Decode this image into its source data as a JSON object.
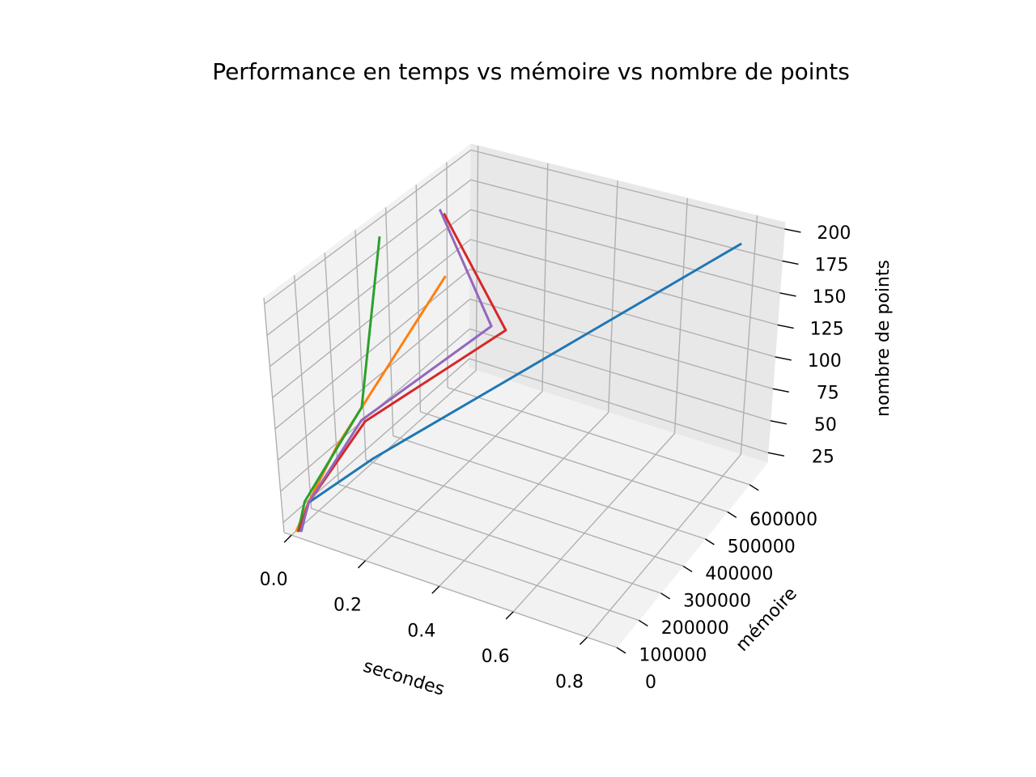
{
  "chart_data": {
    "type": "line3d",
    "title": "Performance en temps vs mémoire vs nombre de points",
    "xlabel": "secondes",
    "ylabel": "mémoire",
    "zlabel": "nombre de points",
    "xlim": [
      -0.02,
      0.88
    ],
    "ylim": [
      0,
      680000
    ],
    "zlim": [
      17,
      205
    ],
    "x_ticks": [
      "0.0",
      "0.2",
      "0.4",
      "0.6",
      "0.8"
    ],
    "y_ticks": [
      "0",
      "100000",
      "200000",
      "300000",
      "400000",
      "500000",
      "600000"
    ],
    "z_ticks": [
      "25",
      "50",
      "75",
      "100",
      "125",
      "150",
      "175",
      "200"
    ],
    "grid": true,
    "pane_color": "#f2f2f2",
    "series": [
      {
        "color": "#1f77b4",
        "points": [
          [
            0.02,
            10000,
            20
          ],
          [
            0.03,
            30000,
            40
          ],
          [
            0.18,
            80000,
            80
          ],
          [
            0.82,
            600000,
            200
          ]
        ]
      },
      {
        "color": "#ff7f0e",
        "points": [
          [
            0.01,
            5000,
            20
          ],
          [
            0.03,
            30000,
            40
          ],
          [
            0.08,
            80000,
            80
          ],
          [
            0.27,
            250000,
            200
          ]
        ]
      },
      {
        "color": "#2ca02c",
        "points": [
          [
            0.015,
            5000,
            20
          ],
          [
            0.02,
            30000,
            40
          ],
          [
            0.1,
            150000,
            100
          ],
          [
            0.03,
            320000,
            200
          ]
        ]
      },
      {
        "color": "#d62728",
        "points": [
          [
            0.015,
            8000,
            20
          ],
          [
            0.03,
            32000,
            40
          ],
          [
            0.14,
            110000,
            100
          ],
          [
            0.4,
            290000,
            160
          ],
          [
            0.1,
            450000,
            200
          ]
        ]
      },
      {
        "color": "#9467bd",
        "points": [
          [
            0.02,
            8000,
            20
          ],
          [
            0.03,
            32000,
            40
          ],
          [
            0.13,
            110000,
            100
          ],
          [
            0.36,
            290000,
            160
          ],
          [
            0.08,
            460000,
            200
          ]
        ]
      }
    ]
  }
}
